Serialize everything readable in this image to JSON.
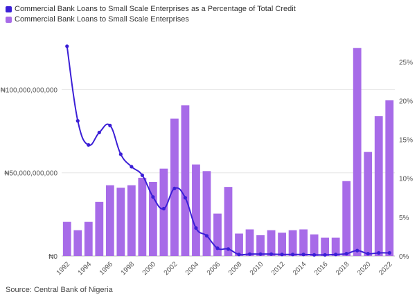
{
  "chart_data": {
    "type": "bar",
    "categories": [
      "1992",
      "1993",
      "1994",
      "1995",
      "1996",
      "1997",
      "1998",
      "1999",
      "2000",
      "2001",
      "2002",
      "2003",
      "2004",
      "2005",
      "2006",
      "2007",
      "2008",
      "2009",
      "2010",
      "2011",
      "2012",
      "2013",
      "2014",
      "2015",
      "2016",
      "2017",
      "2018",
      "2019",
      "2020",
      "2021",
      "2022"
    ],
    "x_tick_labels": [
      "1992",
      "1994",
      "1996",
      "1998",
      "2000",
      "2002",
      "2004",
      "2006",
      "2008",
      "2010",
      "2012",
      "2014",
      "2016",
      "2018",
      "2020",
      "2022"
    ],
    "series": [
      {
        "name": "Commercial Bank Loans to Small Scale Enterprises as a Percentage of Total Credit",
        "type": "line",
        "axis": "right",
        "color": "#3b1fd6",
        "values": [
          27.0,
          17.4,
          14.3,
          15.9,
          16.8,
          13.1,
          11.5,
          10.4,
          7.6,
          6.1,
          8.7,
          7.5,
          3.6,
          2.6,
          1.0,
          0.9,
          0.2,
          0.25,
          0.25,
          0.25,
          0.2,
          0.2,
          0.2,
          0.15,
          0.15,
          0.2,
          0.3,
          0.7,
          0.3,
          0.4,
          0.4
        ]
      },
      {
        "name": "Commercial Bank Loans to Small Scale Enterprises",
        "type": "bar",
        "axis": "left",
        "color": "#a76be8",
        "values": [
          20500000000,
          15500000000,
          20500000000,
          32500000000,
          42500000000,
          41000000000,
          42500000000,
          47000000000,
          44500000000,
          52500000000,
          82500000000,
          90500000000,
          55000000000,
          51000000000,
          25500000000,
          41500000000,
          13500000000,
          16000000000,
          12500000000,
          15500000000,
          14000000000,
          15500000000,
          16000000000,
          13000000000,
          11000000000,
          11000000000,
          45000000000,
          125000000000,
          62500000000,
          84000000000,
          93500000000
        ]
      }
    ],
    "y_left": {
      "ylim": [
        0,
        133000000000
      ],
      "ticks": [
        0,
        50000000000,
        100000000000
      ],
      "tick_labels": [
        "₦0",
        "₦50,000,000,000",
        "₦100,000,000,000"
      ]
    },
    "y_right": {
      "ylim": [
        0,
        28.5
      ],
      "ticks": [
        0,
        5,
        10,
        15,
        20,
        25
      ],
      "tick_labels": [
        "0%",
        "5%",
        "10%",
        "15%",
        "20%",
        "25%"
      ]
    },
    "grid": true,
    "legend_position": "top-left",
    "source": "Source: Central Bank of Nigeria"
  }
}
